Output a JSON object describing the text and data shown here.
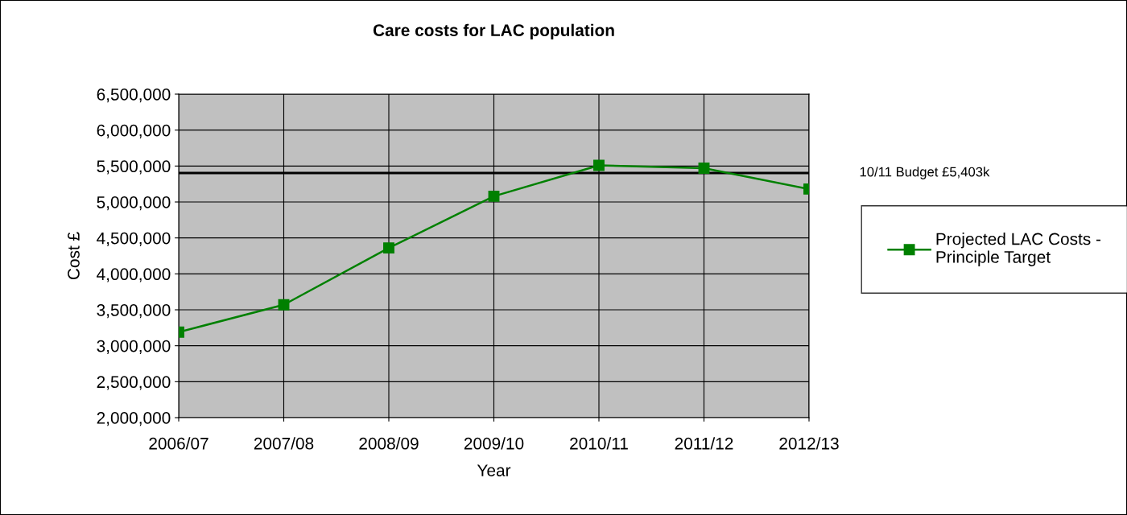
{
  "chart_data": {
    "type": "line",
    "title": "Care costs for LAC population",
    "xlabel": "Year",
    "ylabel": "Cost £",
    "categories": [
      "2006/07",
      "2007/08",
      "2008/09",
      "2009/10",
      "2010/11",
      "2011/12",
      "2012/13"
    ],
    "series": [
      {
        "name": "Projected LAC Costs -\nPrinciple Target",
        "color": "#008000",
        "values": [
          3190000,
          3570000,
          4360000,
          5080000,
          5510000,
          5470000,
          5180000
        ]
      }
    ],
    "ylim": [
      2000000,
      6500000
    ],
    "yticks": [
      {
        "value": 2000000,
        "label": "2,000,000"
      },
      {
        "value": 2500000,
        "label": "2,500,000"
      },
      {
        "value": 3000000,
        "label": "3,000,000"
      },
      {
        "value": 3500000,
        "label": "3,500,000"
      },
      {
        "value": 4000000,
        "label": "4,000,000"
      },
      {
        "value": 4500000,
        "label": "4,500,000"
      },
      {
        "value": 5000000,
        "label": "5,000,000"
      },
      {
        "value": 5500000,
        "label": "5,500,000"
      },
      {
        "value": 6000000,
        "label": "6,000,000"
      },
      {
        "value": 6500000,
        "label": "6,500,000"
      }
    ],
    "ref_lines": [
      {
        "axis": "y",
        "value": 5403000,
        "label": "10/11 Budget £5,403k",
        "color": "#000000",
        "line_style": "solid"
      }
    ],
    "grid": true,
    "legend": "right",
    "marker": "square",
    "line_style": "solid"
  }
}
